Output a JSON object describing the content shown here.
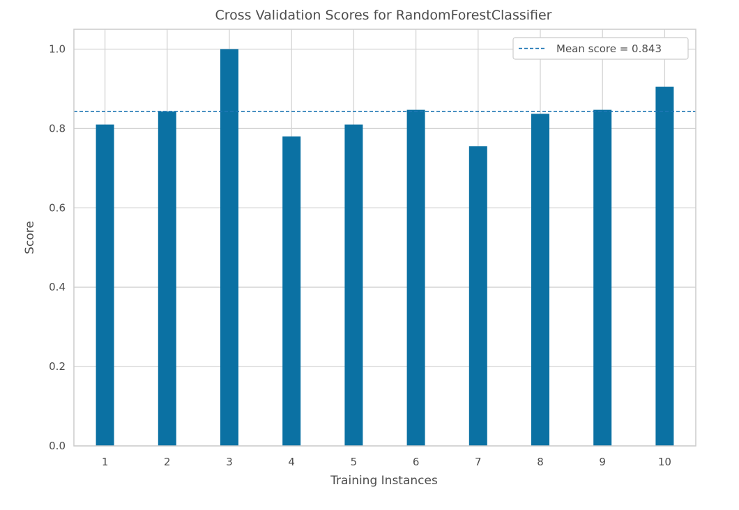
{
  "chart_data": {
    "type": "bar",
    "title": "Cross Validation Scores for RandomForestClassifier",
    "xlabel": "Training Instances",
    "ylabel": "Score",
    "categories": [
      "1",
      "2",
      "3",
      "4",
      "5",
      "6",
      "7",
      "8",
      "9",
      "10"
    ],
    "values": [
      0.81,
      0.843,
      1.0,
      0.78,
      0.81,
      0.847,
      0.755,
      0.837,
      0.847,
      0.905
    ],
    "ylim": [
      0,
      1.05
    ],
    "yticks": [
      "0.0",
      "0.2",
      "0.4",
      "0.6",
      "0.8",
      "1.0"
    ],
    "mean_line": {
      "value": 0.843,
      "label": "Mean score = 0.843",
      "style": "dashed"
    },
    "legend": {
      "position": "top-right"
    },
    "grid": true,
    "colors": {
      "bar": "#0b71a3",
      "mean_line": "#1f77b4",
      "grid": "#d4d4d4",
      "frame": "#cccccc"
    }
  }
}
